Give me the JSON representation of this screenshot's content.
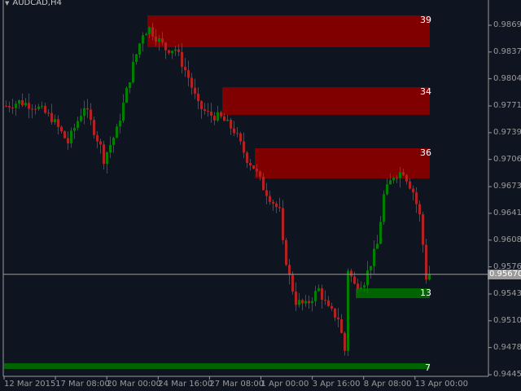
{
  "window": {
    "symbol_title": "AUDCAD,H4",
    "menu_icon": "triangle-down-icon"
  },
  "colors": {
    "background": "#0f1520",
    "bull": "#008000",
    "bear": "#b22222",
    "supply_zone": "#800000",
    "demand_zone": "#006400",
    "axis": "#9a9a9a"
  },
  "chart_data": {
    "type": "candlestick",
    "symbol": "AUDCAD",
    "timeframe": "H4",
    "y_ticks": [
      "0.98695",
      "0.98370",
      "0.98045",
      "0.97715",
      "0.97390",
      "0.97065",
      "0.96735",
      "0.96410",
      "0.96085",
      "0.95760",
      "0.95430",
      "0.95105",
      "0.94780",
      "0.94450"
    ],
    "x_ticks": [
      "12 Mar 2015",
      "17 Mar 08:00",
      "20 Mar 00:00",
      "24 Mar 16:00",
      "27 Mar 08:00",
      "1 Apr 00:00",
      "3 Apr 16:00",
      "8 Apr 08:00",
      "13 Apr 00:00"
    ],
    "current_price": "0.95670",
    "ylim": [
      0.944,
      0.99
    ],
    "bar_count": 131,
    "close_path": [
      {
        "bar": 0,
        "price": 0.97715
      },
      {
        "bar": 4,
        "price": 0.97765
      },
      {
        "bar": 9,
        "price": 0.97715
      },
      {
        "bar": 14,
        "price": 0.97567
      },
      {
        "bar": 19,
        "price": 0.9727
      },
      {
        "bar": 24,
        "price": 0.97715
      },
      {
        "bar": 29,
        "price": 0.9722
      },
      {
        "bar": 30,
        "price": 0.97072
      },
      {
        "bar": 34,
        "price": 0.97418
      },
      {
        "bar": 39,
        "price": 0.9821
      },
      {
        "bar": 42,
        "price": 0.98606
      },
      {
        "bar": 44,
        "price": 0.98655
      },
      {
        "bar": 49,
        "price": 0.98408
      },
      {
        "bar": 52,
        "price": 0.98408
      },
      {
        "bar": 56,
        "price": 0.98062
      },
      {
        "bar": 59,
        "price": 0.97715
      },
      {
        "bar": 62,
        "price": 0.97616
      },
      {
        "bar": 66,
        "price": 0.97567
      },
      {
        "bar": 70,
        "price": 0.97418
      },
      {
        "bar": 74,
        "price": 0.97072
      },
      {
        "bar": 76,
        "price": 0.96973
      },
      {
        "bar": 79,
        "price": 0.96725
      },
      {
        "bar": 84,
        "price": 0.96428
      },
      {
        "bar": 85,
        "price": 0.96032
      },
      {
        "bar": 87,
        "price": 0.95636
      },
      {
        "bar": 89,
        "price": 0.95339
      },
      {
        "bar": 92,
        "price": 0.9529
      },
      {
        "bar": 96,
        "price": 0.95487
      },
      {
        "bar": 99,
        "price": 0.9524
      },
      {
        "bar": 102,
        "price": 0.95141
      },
      {
        "bar": 104,
        "price": 0.94745
      },
      {
        "bar": 105,
        "price": 0.95735
      },
      {
        "bar": 107,
        "price": 0.95537
      },
      {
        "bar": 110,
        "price": 0.95586
      },
      {
        "bar": 114,
        "price": 0.96032
      },
      {
        "bar": 116,
        "price": 0.96626
      },
      {
        "bar": 119,
        "price": 0.96873
      },
      {
        "bar": 122,
        "price": 0.96923
      },
      {
        "bar": 125,
        "price": 0.96675
      },
      {
        "bar": 127,
        "price": 0.96378
      },
      {
        "bar": 128,
        "price": 0.96032
      },
      {
        "bar": 129,
        "price": 0.95636
      },
      {
        "bar": 130,
        "price": 0.9567
      }
    ],
    "zones": [
      {
        "label": "39",
        "kind": "supply",
        "from_bar": 44,
        "top": 0.98814,
        "bottom": 0.98428
      },
      {
        "label": "34",
        "kind": "supply",
        "from_bar": 67,
        "top": 0.97943,
        "bottom": 0.97607
      },
      {
        "label": "36",
        "kind": "supply",
        "from_bar": 77,
        "top": 0.97201,
        "bottom": 0.96835
      },
      {
        "label": "13",
        "kind": "demand",
        "from_bar": 108,
        "top": 0.95499,
        "bottom": 0.9538
      },
      {
        "label": "7",
        "kind": "demand",
        "from_bar": 0,
        "top": 0.94589,
        "bottom": 0.9452
      }
    ]
  }
}
